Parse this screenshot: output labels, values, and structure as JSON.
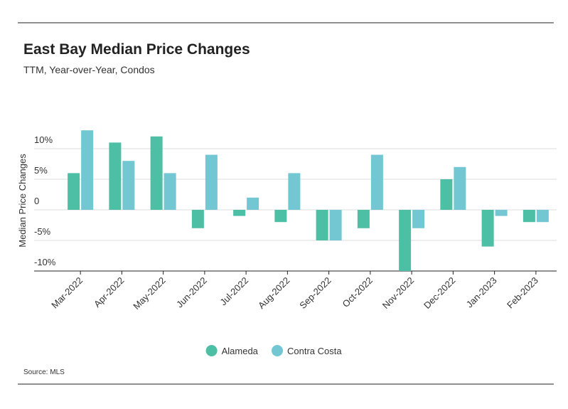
{
  "chart_data": {
    "type": "bar",
    "title": "East Bay Median Price Changes",
    "subtitle": "TTM, Year-over-Year, Condos",
    "y_label": "Median Price Changes",
    "source": "Source: MLS",
    "categories": [
      "Mar-2022",
      "Apr-2022",
      "May-2022",
      "Jun-2022",
      "Jul-2022",
      "Aug-2022",
      "Sep-2022",
      "Oct-2022",
      "Nov-2022",
      "Dec-2022",
      "Jan-2023",
      "Feb-2023"
    ],
    "series": [
      {
        "name": "Alameda",
        "color": "#4dbfa5",
        "values": [
          6,
          11,
          12,
          -3,
          -1,
          -2,
          -5,
          -3,
          -10,
          5,
          -6,
          -2
        ]
      },
      {
        "name": "Contra Costa",
        "color": "#72c7d2",
        "values": [
          13,
          8,
          6,
          9,
          2,
          6,
          -5,
          9,
          -3,
          7,
          -1,
          -2
        ]
      }
    ],
    "ylim": [
      -10,
      15
    ],
    "yticks": [
      {
        "value": -10,
        "label": "-10%"
      },
      {
        "value": -5,
        "label": "-5%"
      },
      0,
      {
        "value": 5,
        "label": "5%"
      },
      {
        "value": 10,
        "label": "10%"
      }
    ],
    "grid": true,
    "legend": "bottom"
  }
}
